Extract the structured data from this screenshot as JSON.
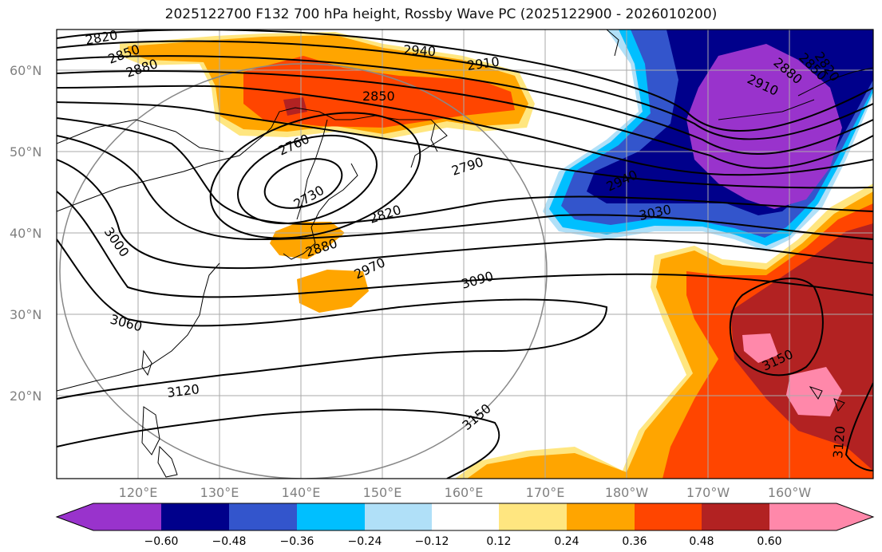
{
  "title": "2025122700 F132 700 hPa height, Rossby Wave PC (2025122900 - 2026010200)",
  "map": {
    "lat_labels": [
      "60°N",
      "50°N",
      "40°N",
      "30°N",
      "20°N"
    ],
    "lon_labels": [
      "120°E",
      "130°E",
      "140°E",
      "150°E",
      "160°E",
      "170°E",
      "180°W",
      "170°W",
      "160°W"
    ]
  },
  "contour_labels": [
    "2820",
    "2850",
    "2880",
    "2940",
    "2910",
    "2850",
    "2760",
    "2790",
    "2730",
    "2820",
    "2880",
    "2970",
    "3000",
    "3090",
    "3060",
    "3120",
    "3150",
    "2940",
    "3030",
    "2910",
    "2880",
    "2850",
    "2820",
    "3150",
    "3120"
  ],
  "colorbar": {
    "ticks": [
      "−0.60",
      "−0.48",
      "−0.36",
      "−0.24",
      "−0.12",
      "0.12",
      "0.24",
      "0.36",
      "0.48",
      "0.60"
    ],
    "colors": [
      "#9933cc",
      "#00008b",
      "#3355cc",
      "#00bfff",
      "#b0e0f8",
      "#ffffff",
      "#ffe680",
      "#ffa500",
      "#ff4500",
      "#b22222",
      "#ff88aa"
    ]
  }
}
